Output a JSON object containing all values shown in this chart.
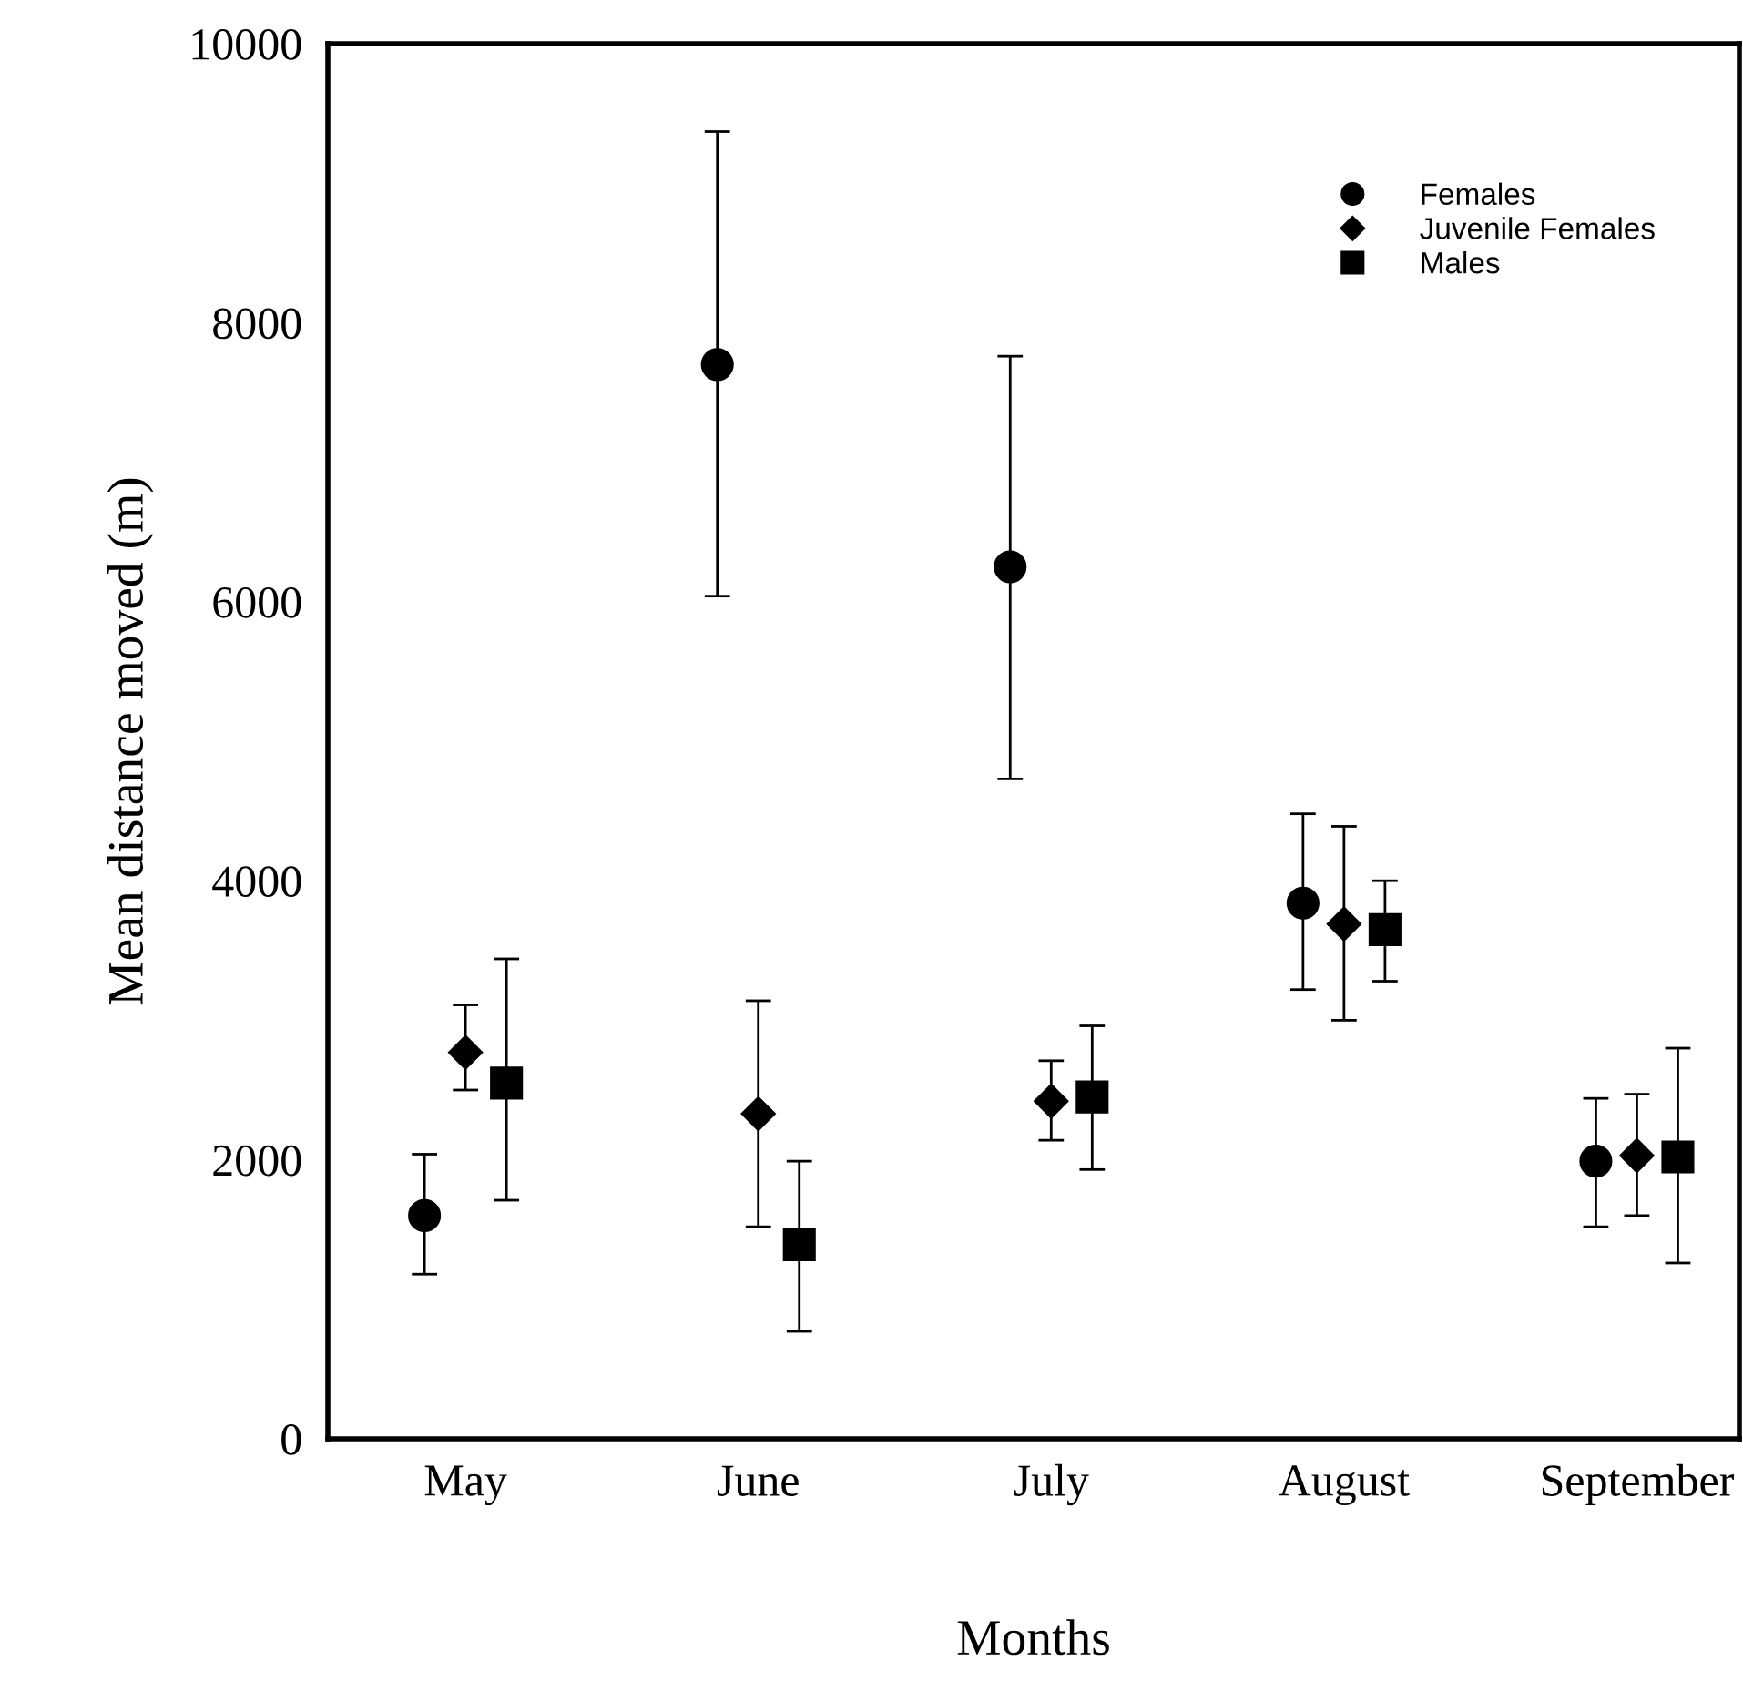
{
  "chart_data": {
    "type": "scatter",
    "xlabel": "Months",
    "ylabel": "Mean distance moved (m)",
    "categories": [
      "May",
      "June",
      "July",
      "August",
      "September"
    ],
    "ylim": [
      0,
      10000
    ],
    "yticks": [
      0,
      2000,
      4000,
      6000,
      8000,
      10000
    ],
    "grid": false,
    "legend": "top right",
    "series": [
      {
        "name": "Females",
        "color": "#000000",
        "marker": "circle",
        "values": [
          1600,
          7700,
          6250,
          3840,
          1990
        ],
        "errors": [
          [
            1180,
            2040
          ],
          [
            6040,
            9370
          ],
          [
            4730,
            7760
          ],
          [
            3220,
            4480
          ],
          [
            1520,
            2440
          ]
        ]
      },
      {
        "name": "Juvenile Females",
        "color": "#000000",
        "marker": "diamond",
        "values": [
          2770,
          2330,
          2420,
          3690,
          2030
        ],
        "errors": [
          [
            2500,
            3110
          ],
          [
            1520,
            3140
          ],
          [
            2140,
            2710
          ],
          [
            3000,
            4390
          ],
          [
            1600,
            2470
          ]
        ]
      },
      {
        "name": "Males",
        "color": "#000000",
        "marker": "square",
        "values": [
          2550,
          1390,
          2450,
          3650,
          2020
        ],
        "errors": [
          [
            1710,
            3440
          ],
          [
            770,
            1990
          ],
          [
            1930,
            2960
          ],
          [
            3280,
            4000
          ],
          [
            1260,
            2800
          ]
        ]
      }
    ]
  }
}
